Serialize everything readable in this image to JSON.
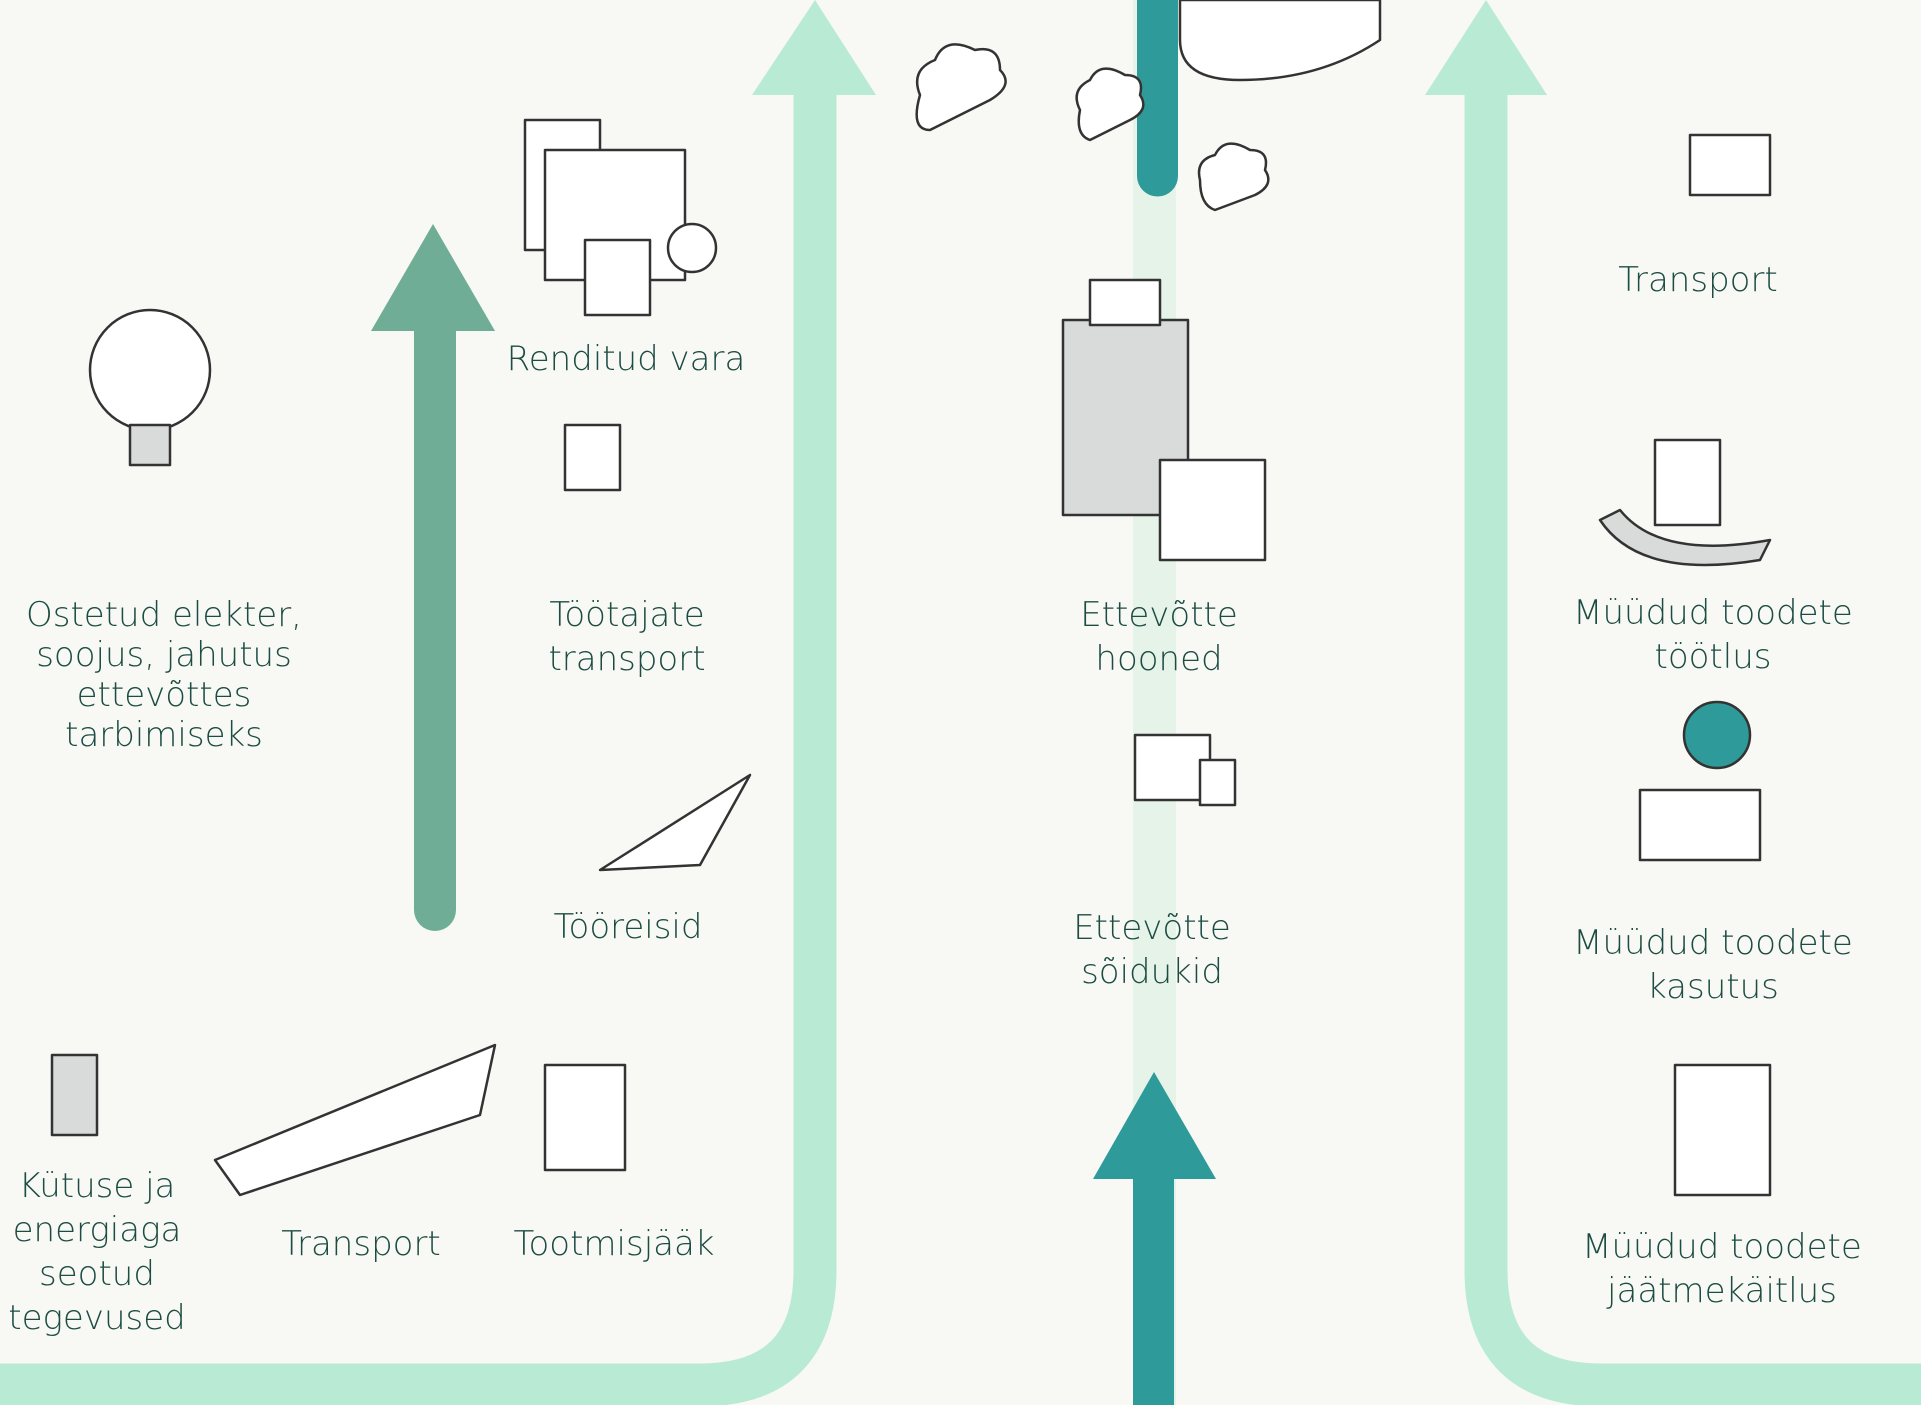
{
  "items": [
    {
      "lines": [
        "Ostetud elekter,",
        "soojus, jahutus",
        "ettevõttes",
        "tarbimiseks"
      ]
    },
    {
      "lines": [
        "Renditud vara"
      ]
    },
    {
      "lines": [
        "Töötajate",
        "transport"
      ]
    },
    {
      "lines": [
        "Tööreisid"
      ]
    },
    {
      "lines": [
        "Kütuse ja",
        "energiaga",
        "seotud",
        "tegevused"
      ]
    },
    {
      "lines": [
        "Transport"
      ]
    },
    {
      "lines": [
        "Tootmisjääk"
      ]
    },
    {
      "lines": [
        "Ettevõtte",
        "hooned"
      ]
    },
    {
      "lines": [
        "Ettevõtte",
        "sõidukid"
      ]
    },
    {
      "lines": [
        "Transport"
      ]
    },
    {
      "lines": [
        "Müüdud toodete",
        "töötlus"
      ]
    },
    {
      "lines": [
        "Müüdud toodete",
        "kasutus"
      ]
    },
    {
      "lines": [
        "Müüdud toodete",
        "jäätmekäitlus"
      ]
    }
  ]
}
